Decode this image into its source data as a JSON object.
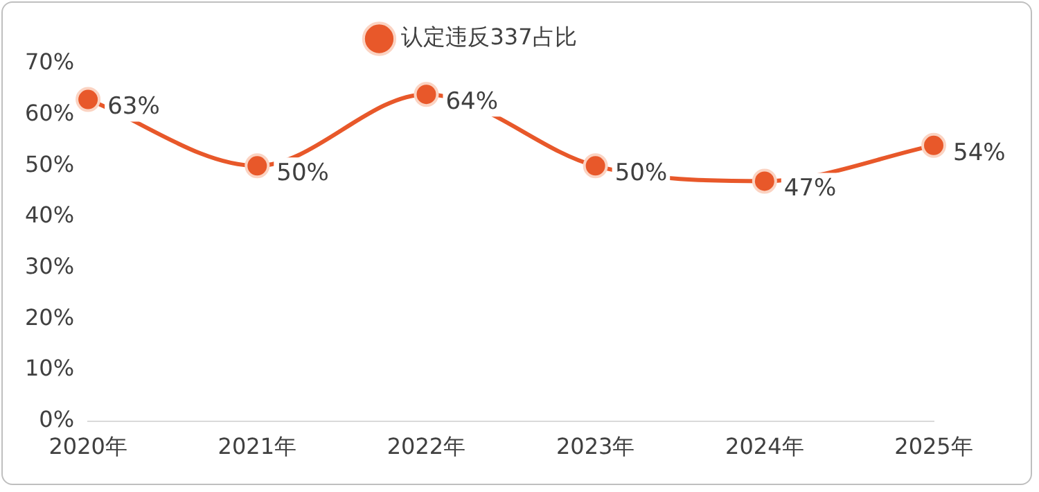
{
  "chart_data": {
    "type": "line",
    "categories": [
      "2020年",
      "2021年",
      "2022年",
      "2023年",
      "2024年",
      "2025年"
    ],
    "series": [
      {
        "name": "认定违反337占比",
        "color": "#e8582a",
        "values": [
          63,
          50,
          64,
          50,
          47,
          54
        ],
        "value_labels": [
          "63%",
          "50%",
          "64%",
          "50%",
          "47%",
          "54%"
        ]
      }
    ],
    "ylim": [
      0,
      70
    ],
    "yticks": [
      {
        "value": 0,
        "label": "0%"
      },
      {
        "value": 10,
        "label": "10%"
      },
      {
        "value": 20,
        "label": "20%"
      },
      {
        "value": 30,
        "label": "30%"
      },
      {
        "value": 40,
        "label": "40%"
      },
      {
        "value": 50,
        "label": "50%"
      },
      {
        "value": 60,
        "label": "60%"
      },
      {
        "value": 70,
        "label": "70%"
      }
    ],
    "grid": false,
    "legend": "top",
    "marker": "circle",
    "line_style": "solid"
  }
}
